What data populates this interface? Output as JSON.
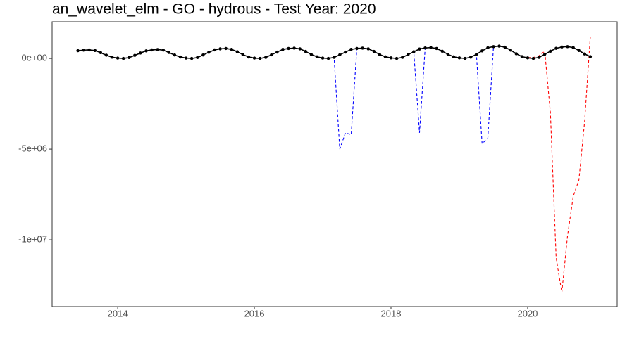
{
  "chart_data": {
    "type": "line",
    "title": "an_wavelet_elm - GO - hydrous - Test Year: 2020",
    "x": [
      2013.417,
      2013.5,
      2013.583,
      2013.667,
      2013.75,
      2013.833,
      2013.917,
      2014.0,
      2014.083,
      2014.167,
      2014.25,
      2014.333,
      2014.417,
      2014.5,
      2014.583,
      2014.667,
      2014.75,
      2014.833,
      2014.917,
      2015.0,
      2015.083,
      2015.167,
      2015.25,
      2015.333,
      2015.417,
      2015.5,
      2015.583,
      2015.667,
      2015.75,
      2015.833,
      2015.917,
      2016.0,
      2016.083,
      2016.167,
      2016.25,
      2016.333,
      2016.417,
      2016.5,
      2016.583,
      2016.667,
      2016.75,
      2016.833,
      2016.917,
      2017.0,
      2017.083,
      2017.167,
      2017.25,
      2017.333,
      2017.417,
      2017.5,
      2017.583,
      2017.667,
      2017.75,
      2017.833,
      2017.917,
      2018.0,
      2018.083,
      2018.167,
      2018.25,
      2018.333,
      2018.417,
      2018.5,
      2018.583,
      2018.667,
      2018.75,
      2018.833,
      2018.917,
      2019.0,
      2019.083,
      2019.167,
      2019.25,
      2019.333,
      2019.417,
      2019.5,
      2019.583,
      2019.667,
      2019.75,
      2019.833,
      2019.917,
      2020.0,
      2020.083,
      2020.167,
      2020.25,
      2020.333,
      2020.417,
      2020.5,
      2020.583,
      2020.667,
      2020.75,
      2020.833,
      2020.917
    ],
    "series": [
      {
        "color": "#0000ff",
        "dashed": true,
        "markers": false,
        "values": [
          430000,
          460000,
          470000,
          440000,
          320000,
          180000,
          70000,
          20000,
          0,
          50000,
          170000,
          300000,
          420000,
          470000,
          490000,
          460000,
          330000,
          190000,
          80000,
          20000,
          0,
          50000,
          190000,
          340000,
          470000,
          530000,
          550000,
          500000,
          370000,
          210000,
          80000,
          20000,
          0,
          60000,
          200000,
          350000,
          500000,
          550000,
          570000,
          530000,
          390000,
          220000,
          90000,
          20000,
          0,
          60000,
          -5000000,
          -4100000,
          -4200000,
          550000,
          570000,
          530000,
          390000,
          220000,
          90000,
          30000,
          0,
          60000,
          210000,
          370000,
          -4100000,
          580000,
          600000,
          550000,
          400000,
          230000,
          90000,
          30000,
          0,
          70000,
          230000,
          -4700000,
          -4400000,
          650000,
          680000,
          620000,
          460000,
          260000,
          100000,
          null,
          null,
          null,
          null,
          null,
          null,
          null,
          null,
          null,
          null,
          null,
          null
        ]
      },
      {
        "color": "#ff0000",
        "dashed": true,
        "markers": false,
        "values": [
          null,
          null,
          null,
          null,
          null,
          null,
          null,
          null,
          null,
          null,
          null,
          null,
          null,
          null,
          null,
          null,
          null,
          null,
          null,
          null,
          null,
          null,
          null,
          null,
          null,
          null,
          null,
          null,
          null,
          null,
          null,
          null,
          null,
          null,
          null,
          null,
          null,
          null,
          null,
          null,
          null,
          null,
          null,
          null,
          null,
          null,
          null,
          null,
          null,
          null,
          null,
          null,
          null,
          null,
          null,
          null,
          null,
          null,
          null,
          null,
          null,
          null,
          null,
          null,
          null,
          null,
          null,
          null,
          null,
          null,
          null,
          null,
          null,
          null,
          null,
          null,
          null,
          null,
          null,
          50000,
          50000,
          150000,
          400000,
          -3000000,
          -11000000,
          -12900000,
          -9800000,
          -7600000,
          -6700000,
          -3500000,
          1200000
        ]
      },
      {
        "color": "#000000",
        "dashed": false,
        "markers": true,
        "values": [
          430000,
          460000,
          470000,
          440000,
          320000,
          180000,
          70000,
          20000,
          0,
          50000,
          170000,
          300000,
          420000,
          470000,
          490000,
          460000,
          330000,
          190000,
          80000,
          20000,
          0,
          50000,
          190000,
          340000,
          470000,
          530000,
          550000,
          500000,
          370000,
          210000,
          80000,
          20000,
          0,
          60000,
          200000,
          350000,
          500000,
          550000,
          570000,
          530000,
          390000,
          220000,
          90000,
          20000,
          0,
          60000,
          200000,
          350000,
          500000,
          550000,
          570000,
          530000,
          390000,
          220000,
          90000,
          30000,
          0,
          60000,
          210000,
          370000,
          520000,
          580000,
          600000,
          550000,
          400000,
          230000,
          90000,
          30000,
          0,
          70000,
          230000,
          420000,
          590000,
          650000,
          680000,
          620000,
          460000,
          260000,
          100000,
          30000,
          0,
          60000,
          230000,
          400000,
          560000,
          630000,
          650000,
          600000,
          440000,
          250000,
          100000
        ]
      }
    ],
    "xlim": [
      2013.04,
      2021.31
    ],
    "xticks": [
      2014,
      2016,
      2018,
      2020
    ],
    "ylim": [
      -13680000,
      2020000
    ],
    "yticks": [
      {
        "value": -10000000,
        "label": "-1e+07"
      },
      {
        "value": -5000000,
        "label": "-5e+06"
      },
      {
        "value": 0,
        "label": "0e+00"
      }
    ],
    "grid": false
  }
}
